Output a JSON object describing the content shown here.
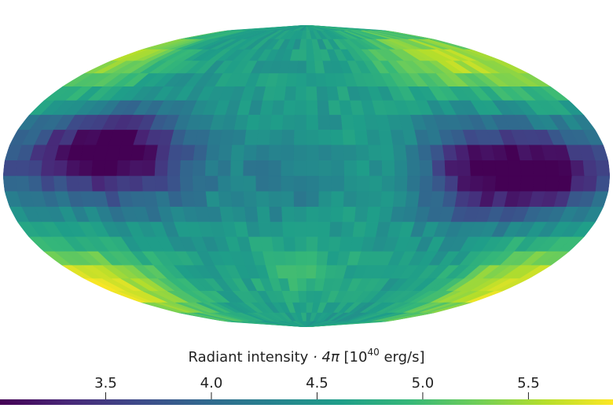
{
  "chart_data": {
    "type": "heatmap",
    "projection": "mollweide",
    "title": "",
    "colorbar": {
      "label_prefix": "Radiant intensity ",
      "label_math": "· 4π",
      "label_unit_open": " [10",
      "label_unit_exp": "40",
      "label_unit_close": " erg/s]",
      "ticks": [
        3.5,
        4.0,
        4.5,
        5.0,
        5.5
      ],
      "tick_labels": [
        "3.5",
        "4.0",
        "4.5",
        "5.0",
        "5.5"
      ],
      "vmin": 3.0,
      "vmax": 5.9,
      "colormap": "viridis",
      "colormap_stops": [
        "#440154",
        "#482878",
        "#3e4989",
        "#31688e",
        "#26828e",
        "#1f9e89",
        "#35b779",
        "#6ece58",
        "#b5de2b",
        "#fde725"
      ]
    },
    "grid": {
      "rows": 24,
      "cols": 48,
      "lon_range": [
        -180,
        180
      ],
      "lat_range": [
        -90,
        90
      ],
      "model": {
        "base": 4.6,
        "features": [
          {
            "lon": -125,
            "lat": 12,
            "amp": -1.45,
            "sigma_lon": 34,
            "sigma_lat": 14
          },
          {
            "lon": -100,
            "lat": 2,
            "amp": -0.55,
            "sigma_lon": 40,
            "sigma_lat": 20
          },
          {
            "lon": 105,
            "lat": 0,
            "amp": -1.25,
            "sigma_lon": 25,
            "sigma_lat": 16
          },
          {
            "lon": 150,
            "lat": 0,
            "amp": -1.1,
            "sigma_lon": 18,
            "sigma_lat": 13
          },
          {
            "lon": 125,
            "lat": 5,
            "amp": -0.5,
            "sigma_lon": 40,
            "sigma_lat": 18
          },
          {
            "lon": -10,
            "lat": 0,
            "amp": -0.35,
            "sigma_lon": 20,
            "sigma_lat": 18
          },
          {
            "lon": 130,
            "lat": 62,
            "amp": 0.95,
            "sigma_lon": 45,
            "sigma_lat": 15
          },
          {
            "lon": -150,
            "lat": -58,
            "amp": 0.8,
            "sigma_lon": 35,
            "sigma_lat": 16
          },
          {
            "lon": 160,
            "lat": -55,
            "amp": 0.85,
            "sigma_lon": 30,
            "sigma_lat": 16
          },
          {
            "lon": -160,
            "lat": 58,
            "amp": 0.5,
            "sigma_lon": 30,
            "sigma_lat": 14
          },
          {
            "lon": -5,
            "lat": -50,
            "amp": 0.3,
            "sigma_lon": 28,
            "sigma_lat": 15
          }
        ],
        "noise_amp": 0.16,
        "seed": 7
      }
    }
  }
}
